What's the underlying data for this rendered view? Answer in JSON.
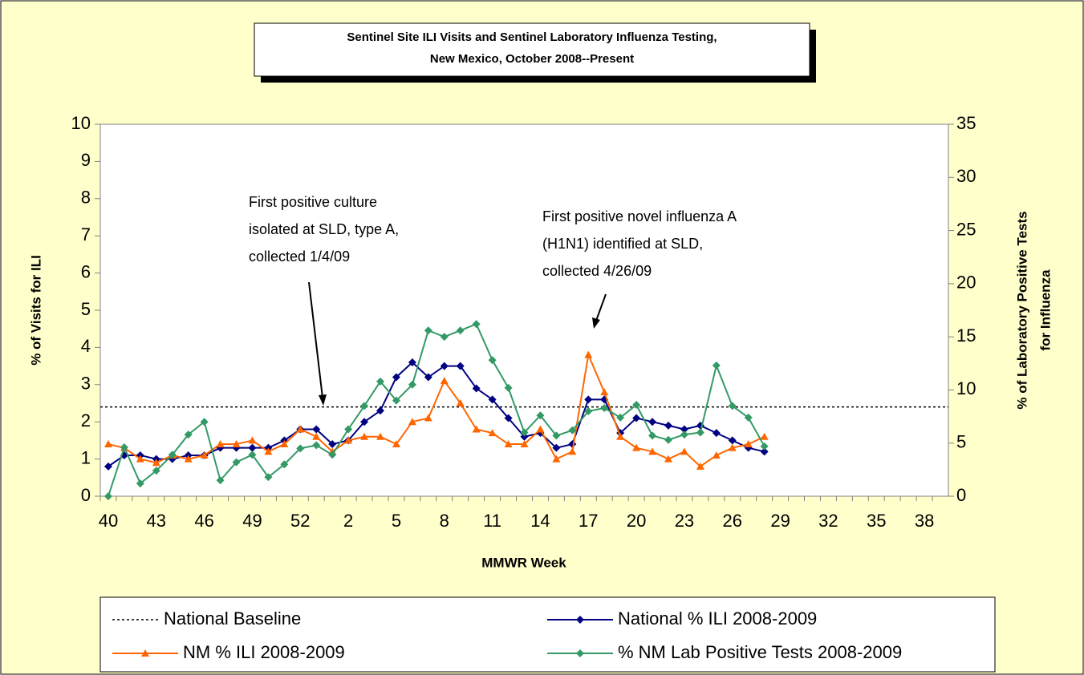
{
  "chart_data": {
    "type": "line",
    "title": [
      "Sentinel Site ILI Visits and Sentinel Laboratory Influenza Testing,",
      "New Mexico, October 2008--Present"
    ],
    "x_label": "MMWR Week",
    "y_label": "% of Visits for ILI",
    "y2_label": [
      "% of Laboratory Positive Tests",
      "for Influenza"
    ],
    "categories": [
      "40",
      null,
      null,
      "43",
      null,
      null,
      "46",
      null,
      null,
      "49",
      null,
      null,
      "52",
      null,
      null,
      "2",
      null,
      null,
      "5",
      null,
      null,
      "8",
      null,
      null,
      "11",
      null,
      null,
      "14",
      null,
      null,
      "17",
      null,
      null,
      "20",
      null,
      null,
      "23",
      null,
      null,
      "26",
      null,
      null,
      "29",
      null,
      null,
      "32",
      null,
      null,
      "35",
      null,
      null,
      "38",
      null
    ],
    "ylim": [
      0,
      10
    ],
    "yticks": [
      0,
      1,
      2,
      3,
      4,
      5,
      6,
      7,
      8,
      9,
      10
    ],
    "y2lim": [
      0,
      35
    ],
    "y2ticks": [
      0,
      5,
      10,
      15,
      20,
      25,
      30,
      35
    ],
    "baseline": {
      "name": "National Baseline",
      "value": 2.4,
      "color": "#000000"
    },
    "series": [
      {
        "name": "National % ILI 2008-2009",
        "color": "#000080",
        "marker": "diamond",
        "values": [
          0.8,
          1.1,
          1.1,
          1.0,
          1.0,
          1.1,
          1.1,
          1.3,
          1.3,
          1.3,
          1.3,
          1.5,
          1.8,
          1.8,
          1.4,
          1.5,
          2.0,
          2.3,
          3.2,
          3.6,
          3.2,
          3.5,
          3.5,
          2.9,
          2.6,
          2.1,
          1.6,
          1.7,
          1.3,
          1.4,
          2.6,
          2.6,
          1.7,
          2.1,
          2.0,
          1.9,
          1.8,
          1.9,
          1.7,
          1.5,
          1.3,
          1.2,
          null,
          null,
          null,
          null,
          null,
          null,
          null,
          null,
          null,
          null,
          null
        ]
      },
      {
        "name": "NM % ILI 2008-2009",
        "color": "#FF6600",
        "marker": "triangle",
        "values": [
          1.4,
          1.3,
          1.0,
          0.9,
          1.1,
          1.0,
          1.1,
          1.4,
          1.4,
          1.5,
          1.2,
          1.4,
          1.8,
          1.6,
          1.2,
          1.5,
          1.6,
          1.6,
          1.4,
          2.0,
          2.1,
          3.1,
          2.5,
          1.8,
          1.7,
          1.4,
          1.4,
          1.8,
          1.0,
          1.2,
          3.8,
          2.8,
          1.6,
          1.3,
          1.2,
          1.0,
          1.2,
          0.8,
          1.1,
          1.3,
          1.4,
          1.6,
          null,
          null,
          null,
          null,
          null,
          null,
          null,
          null,
          null,
          null,
          null
        ]
      },
      {
        "name": "% NM Lab Positive Tests 2008-2009",
        "color": "#339966",
        "marker": "diamond",
        "axis": "y2",
        "values": [
          0,
          4.6,
          1.2,
          2.4,
          3.9,
          5.8,
          7.0,
          1.5,
          3.2,
          3.9,
          1.8,
          3.0,
          4.5,
          4.8,
          3.9,
          6.3,
          8.5,
          10.8,
          9.0,
          10.5,
          15.6,
          15.0,
          15.6,
          16.2,
          12.8,
          10.2,
          6.0,
          7.6,
          5.7,
          6.2,
          8.0,
          8.3,
          7.4,
          8.6,
          5.7,
          5.3,
          5.8,
          6.0,
          12.3,
          8.5,
          7.4,
          4.7,
          null,
          null,
          null,
          null,
          null,
          null,
          null,
          null,
          null,
          null,
          null
        ]
      }
    ],
    "annotations": [
      {
        "lines": [
          "First positive culture",
          "isolated at SLD, type A,",
          "collected 1/4/09"
        ]
      },
      {
        "lines": [
          "First positive novel influenza A",
          "(H1N1) identified at SLD,",
          "collected 4/26/09"
        ]
      }
    ]
  }
}
